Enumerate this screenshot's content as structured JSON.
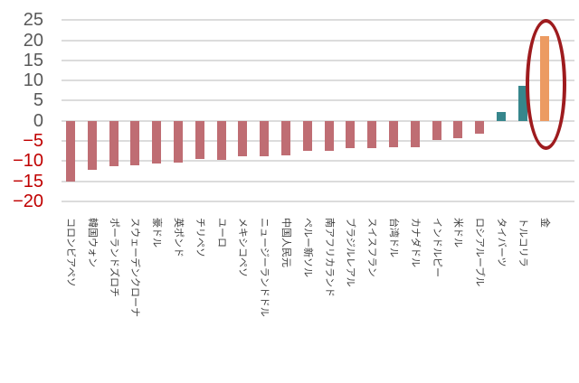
{
  "chart_data": {
    "type": "bar",
    "title": "",
    "xlabel": "",
    "ylabel": "",
    "categories": [
      "コロンビアペソ",
      "韓国ウォン",
      "ポーランドズロチ",
      "スウェーデンクローナ",
      "豪ドル",
      "英ポンド",
      "チリペソ",
      "ユーロ",
      "メキシコペソ",
      "ニュージーランドドル",
      "中国人民元",
      "ペルー新ソル",
      "南アフリカランド",
      "ブラジルレアル",
      "スイスフラン",
      "台湾ドル",
      "カナダドル",
      "インドルピー",
      "米ドル",
      "ロシアルーブル",
      "タイバーツ",
      "トルコリラ",
      "金"
    ],
    "values": [
      -15.1,
      -12.2,
      -11.2,
      -11.0,
      -10.5,
      -10.3,
      -9.4,
      -9.6,
      -8.9,
      -8.8,
      -8.7,
      -7.5,
      -7.5,
      -6.8,
      -6.7,
      -6.6,
      -6.5,
      -4.7,
      -4.3,
      -3.3,
      2.2,
      8.6,
      21.0
    ],
    "bar_colors": [
      "#BF6D73",
      "#BF6D73",
      "#BF6D73",
      "#BF6D73",
      "#BF6D73",
      "#BF6D73",
      "#BF6D73",
      "#BF6D73",
      "#BF6D73",
      "#BF6D73",
      "#BF6D73",
      "#BF6D73",
      "#BF6D73",
      "#BF6D73",
      "#BF6D73",
      "#BF6D73",
      "#BF6D73",
      "#BF6D73",
      "#BF6D73",
      "#BF6D73",
      "#36868C",
      "#36868C",
      "#EC9B62"
    ],
    "yticks": [
      25,
      20,
      15,
      10,
      5,
      0,
      -5,
      -10,
      -15,
      -20
    ],
    "ylim": [
      -20,
      25
    ],
    "grid": true,
    "legend": "none",
    "style": {
      "negative_bar_color": "#BF6D73",
      "teal_bar_color": "#36868C",
      "gold_bar_color": "#EC9B62",
      "gridline_color": "#DCDCDC",
      "tick_color_positive": "#595959",
      "tick_color_negative": "#C00000"
    },
    "annotation": {
      "shape": "ellipse",
      "stroke": "#9E1B1E",
      "highlighted_category": "金"
    }
  }
}
